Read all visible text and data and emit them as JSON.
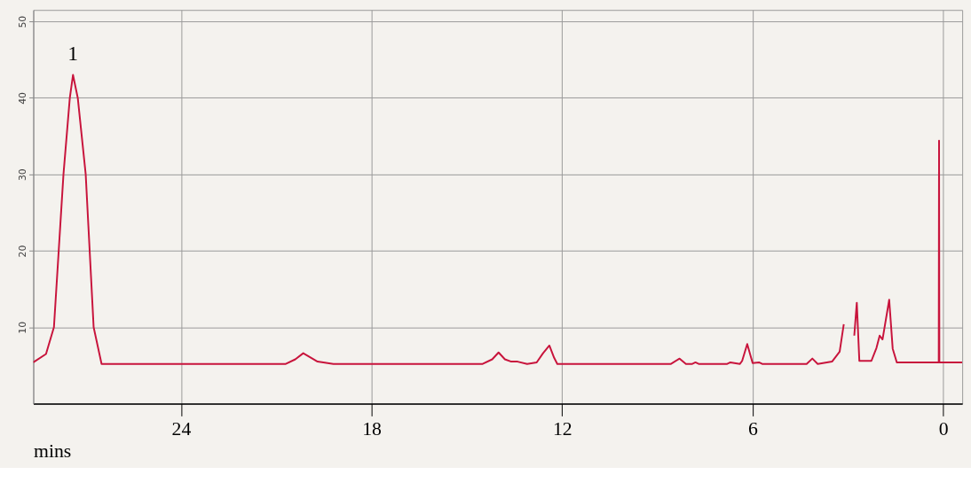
{
  "chart_data": {
    "type": "line",
    "xlabel": "mins",
    "color": "#c8143c",
    "x": [
      28.65,
      28.25,
      28.0,
      27.7,
      27.5,
      27.4,
      27.25,
      27.0,
      26.75,
      26.5,
      20.7,
      20.4,
      20.15,
      19.9,
      19.7,
      19.2,
      14.5,
      14.2,
      14.0,
      13.8,
      13.6,
      13.4,
      13.1,
      12.8,
      12.6,
      12.4,
      12.25,
      12.15,
      8.57,
      8.3,
      8.1,
      7.9,
      7.8,
      7.7,
      6.8,
      6.7,
      6.4,
      6.33,
      6.17,
      6.0,
      5.8,
      5.7,
      4.3,
      4.12,
      3.95,
      3.5,
      3.26,
      3.13,
      3.05,
      2.9,
      2.8,
      2.72,
      2.64,
      2.26,
      2.1,
      2.0,
      1.91,
      1.7,
      1.59,
      1.46,
      0.14,
      0.13,
      0.12,
      -0.6
    ],
    "values": [
      5.4,
      6.5,
      10,
      30,
      40,
      43,
      40,
      30,
      10,
      5.2,
      5.2,
      5.8,
      6.6,
      6.0,
      5.5,
      5.2,
      5.2,
      5.8,
      6.7,
      5.8,
      5.5,
      5.5,
      5.2,
      5.4,
      6.6,
      7.6,
      6.0,
      5.2,
      5.2,
      5.9,
      5.2,
      5.2,
      5.4,
      5.2,
      5.2,
      5.4,
      5.2,
      5.6,
      7.8,
      5.3,
      5.4,
      5.2,
      5.2,
      5.9,
      5.2,
      5.5,
      6.8,
      10.4,
      null,
      null,
      8.9,
      13.2,
      5.6,
      5.6,
      7.3,
      8.9,
      8.4,
      13.6,
      7.2,
      5.4,
      5.4,
      34.4,
      5.4,
      5.4
    ],
    "xlim": [
      28.65,
      -0.6
    ],
    "xticks": [
      24,
      18,
      12,
      6,
      0
    ],
    "ylim": [
      0,
      51.5
    ],
    "yticks": [
      10,
      20,
      30,
      40,
      50
    ],
    "grid": true,
    "marker": "none",
    "line_style": "solid",
    "annotations": [
      {
        "text": "1",
        "x": 27.4,
        "y": 43
      }
    ]
  }
}
